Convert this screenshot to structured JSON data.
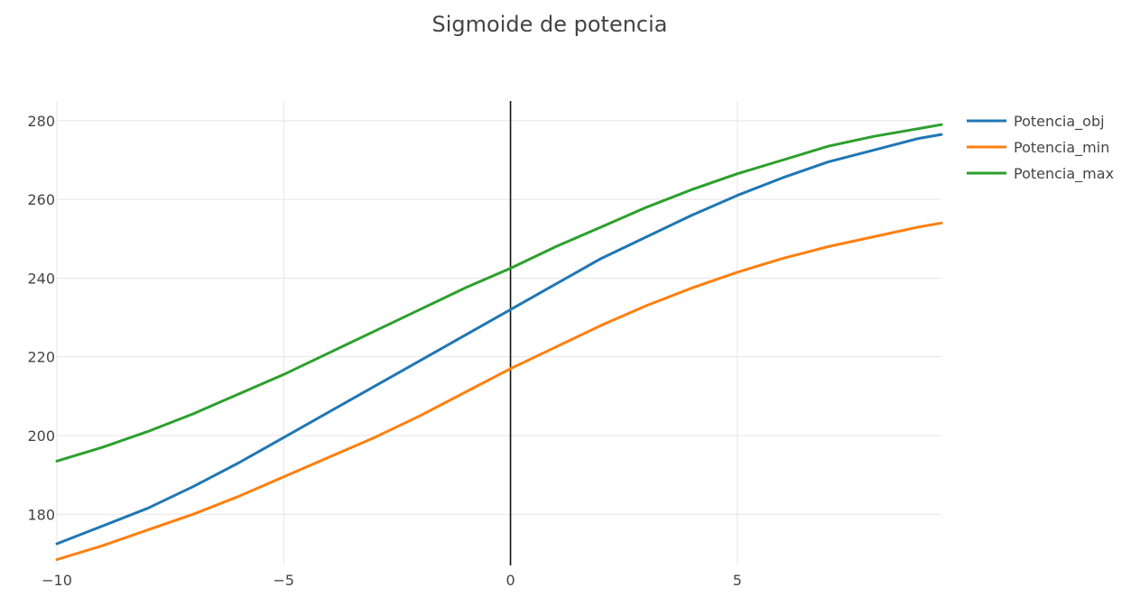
{
  "chart_data": {
    "type": "line",
    "title": "Sigmoide de potencia",
    "xlabel": "",
    "ylabel": "",
    "xlim": [
      -10,
      9.5
    ],
    "ylim": [
      167,
      285
    ],
    "x_ticks": [
      -10,
      -5,
      0,
      5
    ],
    "x_tick_labels": [
      "−10",
      "−5",
      "0",
      "5"
    ],
    "y_ticks": [
      180,
      200,
      220,
      240,
      260,
      280
    ],
    "y_tick_labels": [
      "180",
      "200",
      "220",
      "240",
      "260",
      "280"
    ],
    "grid": true,
    "legend_position": "top-right",
    "x": [
      -10,
      -9,
      -8,
      -7,
      -6,
      -5,
      -4,
      -3,
      -2,
      -1,
      0,
      1,
      2,
      3,
      4,
      5,
      6,
      7,
      8,
      9,
      9.5
    ],
    "series": [
      {
        "name": "Potencia_obj",
        "color": "#1f77b4",
        "values": [
          172.5,
          177.0,
          181.5,
          187.0,
          193.0,
          199.5,
          206.0,
          212.5,
          219.0,
          225.5,
          232.0,
          238.5,
          245.0,
          250.5,
          256.0,
          261.0,
          265.5,
          269.5,
          272.5,
          275.5,
          276.5
        ]
      },
      {
        "name": "Potencia_min",
        "color": "#ff7f0e",
        "values": [
          168.5,
          172.0,
          176.0,
          180.0,
          184.5,
          189.5,
          194.5,
          199.5,
          205.0,
          211.0,
          217.0,
          222.5,
          228.0,
          233.0,
          237.5,
          241.5,
          245.0,
          248.0,
          250.5,
          253.0,
          254.0
        ]
      },
      {
        "name": "Potencia_max",
        "color": "#2ca02c",
        "values": [
          193.5,
          197.0,
          201.0,
          205.5,
          210.5,
          215.5,
          221.0,
          226.5,
          232.0,
          237.5,
          242.5,
          248.0,
          253.0,
          258.0,
          262.5,
          266.5,
          270.0,
          273.5,
          276.0,
          278.0,
          279.0
        ]
      }
    ]
  }
}
